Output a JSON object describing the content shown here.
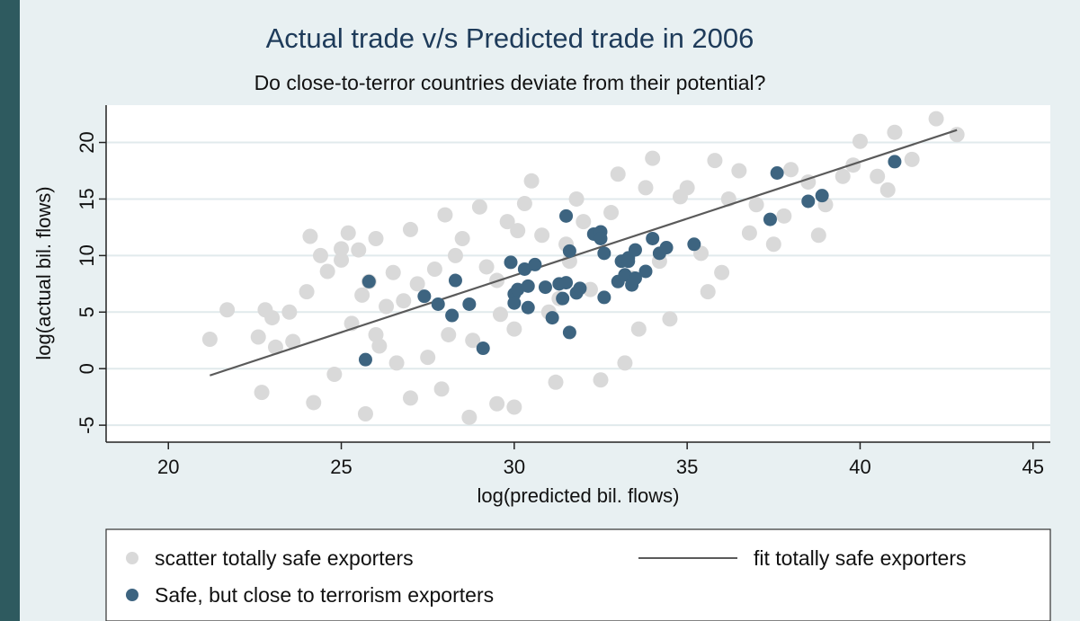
{
  "chart_data": {
    "type": "scatter",
    "title": "Actual trade v/s Predicted trade in 2006",
    "subtitle": "Do close-to-terror countries deviate from their potential?",
    "xlabel": "log(predicted bil. flows)",
    "ylabel": "log(actual bil. flows)",
    "xlim": [
      18.2,
      45.5
    ],
    "ylim": [
      -6.5,
      23.3
    ],
    "xticks": [
      20,
      25,
      30,
      35,
      40,
      45
    ],
    "yticks": [
      -5,
      0,
      5,
      10,
      15,
      20
    ],
    "grid": true,
    "legend_position": "bottom",
    "colors": {
      "safe": "#d9d9d9",
      "terror": "#3d6480",
      "fit": "#5a5a5a",
      "plot_bg": "#ffffff",
      "grid": "#e1eaec",
      "outer_bg": "#e8f0f2"
    },
    "fit_line": {
      "name": "fit totally safe exporters",
      "x": [
        21.2,
        42.8
      ],
      "y": [
        -0.6,
        21.1
      ]
    },
    "series": [
      {
        "name": "scatter totally safe exporters",
        "x": [
          21.2,
          21.7,
          22.6,
          22.8,
          23.1,
          23.6,
          24.1,
          24.4,
          24.6,
          25.0,
          25.2,
          25.5,
          25.8,
          26.0,
          26.5,
          22.7,
          24.2,
          25.7,
          27.0,
          28.7,
          29.5,
          30.0,
          31.2,
          32.5,
          33.2,
          34.5,
          36.0,
          37.5,
          39.0,
          40.5,
          41.5,
          42.2,
          42.8,
          41.0,
          40.0,
          39.5,
          38.0,
          36.5,
          35.8,
          34.0,
          33.0,
          31.8,
          30.5,
          29.0,
          28.0,
          27.0,
          26.0,
          25.0,
          24.0,
          23.5,
          23.0,
          26.8,
          28.3,
          29.8,
          30.3,
          32.0,
          33.8,
          35.0,
          36.2,
          37.0,
          38.5,
          39.8,
          27.5,
          28.8,
          30.0,
          31.0,
          32.2,
          34.2,
          36.8,
          25.3,
          26.3,
          27.2,
          29.2,
          31.5,
          24.8,
          26.6,
          28.1,
          29.6,
          31.3,
          33.4,
          35.4,
          37.8,
          30.8,
          32.8,
          34.8,
          29.5,
          25.6,
          27.7,
          28.5,
          30.1,
          31.6,
          27.9,
          26.1,
          33.6,
          35.6,
          38.8,
          40.8
        ],
        "y": [
          2.6,
          5.2,
          2.8,
          5.2,
          1.9,
          2.4,
          11.7,
          10.0,
          8.6,
          9.6,
          12.0,
          10.5,
          7.7,
          3.0,
          8.5,
          -2.1,
          -3.0,
          -4.0,
          -2.6,
          -4.3,
          -3.1,
          -3.4,
          -1.2,
          -1.0,
          0.5,
          4.4,
          8.5,
          11.0,
          14.5,
          17.0,
          18.5,
          22.1,
          20.7,
          20.9,
          20.1,
          17.0,
          17.6,
          17.5,
          18.4,
          18.6,
          17.2,
          15.0,
          16.6,
          14.3,
          13.6,
          12.3,
          11.5,
          10.6,
          6.8,
          5.0,
          4.5,
          6.0,
          10.0,
          13.0,
          14.6,
          13.0,
          16.0,
          16.0,
          15.0,
          14.5,
          16.5,
          18.0,
          1.0,
          2.5,
          3.5,
          5.0,
          7.0,
          9.5,
          12.0,
          4.0,
          5.5,
          7.5,
          9.0,
          11.0,
          -0.5,
          0.5,
          3.0,
          4.8,
          6.2,
          8.0,
          10.2,
          13.5,
          11.8,
          13.8,
          15.2,
          7.8,
          6.5,
          8.8,
          11.5,
          12.2,
          9.5,
          -1.8,
          2.0,
          3.5,
          6.8,
          11.8,
          15.8
        ]
      },
      {
        "name": "Safe, but close to terrorism exporters",
        "x": [
          25.7,
          25.8,
          27.4,
          27.8,
          28.2,
          28.3,
          28.7,
          29.1,
          29.9,
          30.0,
          30.0,
          30.1,
          30.3,
          30.4,
          30.4,
          30.6,
          30.9,
          31.1,
          31.3,
          31.4,
          31.5,
          31.5,
          31.6,
          31.6,
          31.8,
          31.9,
          32.3,
          32.5,
          32.5,
          32.6,
          32.6,
          33.0,
          33.1,
          33.2,
          33.3,
          33.3,
          33.4,
          33.5,
          33.5,
          33.8,
          34.0,
          34.2,
          34.4,
          35.2,
          37.4,
          37.6,
          38.5,
          38.9,
          41.0
        ],
        "y": [
          0.8,
          7.7,
          6.4,
          5.7,
          4.7,
          7.8,
          5.7,
          1.8,
          9.4,
          6.6,
          5.8,
          7.0,
          8.8,
          5.4,
          7.3,
          9.2,
          7.2,
          4.5,
          7.5,
          6.2,
          7.6,
          13.5,
          10.4,
          3.2,
          6.7,
          7.1,
          11.9,
          12.1,
          11.5,
          10.2,
          6.3,
          7.7,
          9.5,
          8.3,
          9.8,
          9.5,
          7.4,
          10.5,
          8.0,
          8.6,
          11.5,
          10.2,
          10.7,
          11.0,
          13.2,
          17.3,
          14.8,
          15.3,
          18.3
        ]
      }
    ]
  }
}
